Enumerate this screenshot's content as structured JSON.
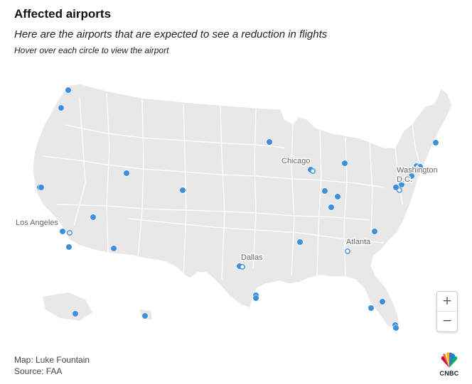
{
  "title": "Affected airports",
  "subtitle": "Here are the airports that are expected to see a reduction in flights",
  "hint": "Hover over each circle to view the airport",
  "map": {
    "region": "United States",
    "colors": {
      "land": "#e8e8e8",
      "border": "#ffffff",
      "airport": "#3d8fd9"
    },
    "city_labels": {
      "los_angeles": "Los Angeles",
      "chicago": "Chicago",
      "dallas": "Dallas",
      "atlanta": "Atlanta",
      "washington_1": "Washington",
      "washington_2": "D.C."
    },
    "airport_count": 40
  },
  "zoom": {
    "in_label": "+",
    "out_label": "−"
  },
  "credits": {
    "map": "Map: Luke Fountain",
    "source": "Source: FAA"
  },
  "logo": {
    "text": "CNBC",
    "icon": "peacock-icon"
  }
}
